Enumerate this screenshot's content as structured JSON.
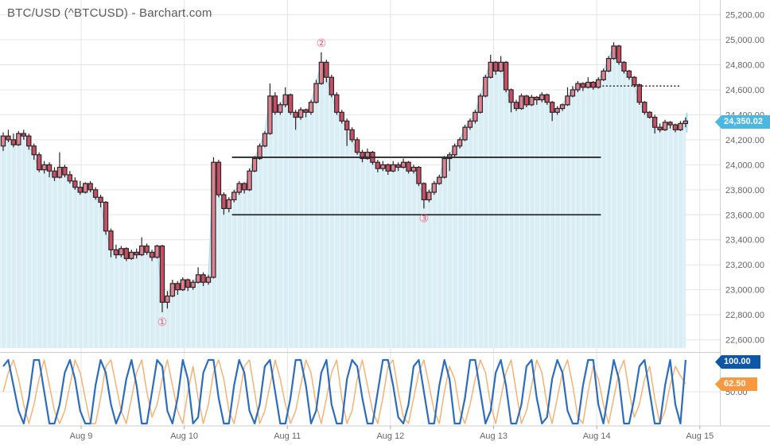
{
  "title": "BTC/USD (^BTCUSD) - Barchart.com",
  "badges": {
    "price": "24,350.02",
    "stoch_k": "100.00",
    "stoch_d": "62.50"
  },
  "y_axis": {
    "labels": [
      "25,200.00",
      "25,000.00",
      "24,800.00",
      "24,600.00",
      "24,400.00",
      "24,200.00",
      "24,000.00",
      "23,800.00",
      "23,600.00",
      "23,400.00",
      "23,200.00",
      "23,000.00",
      "22,800.00",
      "22,600.00"
    ]
  },
  "x_axis": {
    "labels": [
      "Aug 9",
      "Aug 10",
      "Aug 11",
      "Aug 12",
      "Aug 13",
      "Aug 14",
      "Aug 15"
    ]
  },
  "osc_axis": {
    "mid_label": "50.00"
  },
  "colors": {
    "candle_up": "#db8391",
    "candle_down": "#c84f63",
    "candle_border": "#2b2527",
    "area_fill": "#d9edf5",
    "area_stripe": "#e8f4f9",
    "area_edge": "#aedbea",
    "grid": "#e4e4e4",
    "axis_border": "#cccccc",
    "label": "#666666",
    "title": "#5a5c5e",
    "level_line": "#2a2a2a",
    "annotation": "#ef5e77",
    "stoch_k": "#2a6cc0",
    "stoch_d": "#f9ad69",
    "badge_price_bg": "#4bb7e3",
    "badge_k_bg": "#0e57a8",
    "badge_d_bg": "#f8993f",
    "live_bar": "#9fd9ee"
  },
  "chart_data": [
    {
      "type": "candlestick",
      "symbol": "BTC/USD (^BTCUSD)",
      "y_range": [
        22600,
        25200
      ],
      "y_step": 200,
      "x_range": [
        "Aug 9",
        "Aug 15"
      ],
      "last_price": 24350.02,
      "ohlc": [
        [
          24150,
          24260,
          24110,
          24230
        ],
        [
          24230,
          24280,
          24180,
          24200
        ],
        [
          24200,
          24250,
          24140,
          24160
        ],
        [
          24160,
          24270,
          24150,
          24250
        ],
        [
          24250,
          24280,
          24200,
          24230
        ],
        [
          24230,
          24250,
          24120,
          24150
        ],
        [
          24150,
          24170,
          24040,
          24080
        ],
        [
          24080,
          24100,
          23940,
          23960
        ],
        [
          23960,
          24030,
          23930,
          24000
        ],
        [
          24000,
          24020,
          23900,
          23950
        ],
        [
          23950,
          23980,
          23870,
          23900
        ],
        [
          23900,
          24100,
          23890,
          23980
        ],
        [
          23980,
          24000,
          23900,
          23920
        ],
        [
          23920,
          23950,
          23850,
          23870
        ],
        [
          23870,
          23900,
          23800,
          23820
        ],
        [
          23820,
          23870,
          23760,
          23780
        ],
        [
          23780,
          23860,
          23770,
          23850
        ],
        [
          23850,
          23870,
          23780,
          23800
        ],
        [
          23800,
          23820,
          23720,
          23740
        ],
        [
          23740,
          23760,
          23660,
          23700
        ],
        [
          23700,
          23710,
          23440,
          23470
        ],
        [
          23470,
          23490,
          23260,
          23320
        ],
        [
          23320,
          23360,
          23250,
          23280
        ],
        [
          23280,
          23350,
          23260,
          23330
        ],
        [
          23330,
          23340,
          23230,
          23250
        ],
        [
          23250,
          23320,
          23240,
          23300
        ],
        [
          23300,
          23330,
          23250,
          23280
        ],
        [
          23280,
          23420,
          23270,
          23350
        ],
        [
          23350,
          23370,
          23280,
          23300
        ],
        [
          23300,
          23320,
          23230,
          23260
        ],
        [
          23260,
          23360,
          23250,
          23350
        ],
        [
          23350,
          23360,
          22820,
          22900
        ],
        [
          22900,
          22990,
          22850,
          22950
        ],
        [
          22950,
          23080,
          22940,
          23050
        ],
        [
          23050,
          23070,
          22960,
          23000
        ],
        [
          23000,
          23100,
          22990,
          23080
        ],
        [
          23080,
          23090,
          22990,
          23020
        ],
        [
          23020,
          23080,
          23000,
          23060
        ],
        [
          23060,
          23180,
          23050,
          23120
        ],
        [
          23120,
          23140,
          23030,
          23060
        ],
        [
          23060,
          23120,
          23040,
          23100
        ],
        [
          23100,
          24060,
          23090,
          24020
        ],
        [
          24020,
          24040,
          23740,
          23760
        ],
        [
          23760,
          23780,
          23600,
          23650
        ],
        [
          23650,
          23740,
          23620,
          23720
        ],
        [
          23720,
          23800,
          23700,
          23780
        ],
        [
          23780,
          23870,
          23760,
          23850
        ],
        [
          23850,
          23860,
          23770,
          23800
        ],
        [
          23800,
          23970,
          23790,
          23950
        ],
        [
          23950,
          24070,
          23940,
          24050
        ],
        [
          24050,
          24170,
          24040,
          24150
        ],
        [
          24150,
          24270,
          24140,
          24250
        ],
        [
          24250,
          24650,
          24240,
          24550
        ],
        [
          24550,
          24580,
          24400,
          24420
        ],
        [
          24420,
          24500,
          24400,
          24480
        ],
        [
          24480,
          24620,
          24460,
          24560
        ],
        [
          24560,
          24570,
          24400,
          24420
        ],
        [
          24420,
          24440,
          24280,
          24380
        ],
        [
          24380,
          24460,
          24360,
          24440
        ],
        [
          24440,
          24450,
          24380,
          24420
        ],
        [
          24420,
          24520,
          24400,
          24500
        ],
        [
          24500,
          24680,
          24490,
          24650
        ],
        [
          24650,
          24900,
          24640,
          24820
        ],
        [
          24820,
          24840,
          24660,
          24700
        ],
        [
          24700,
          24720,
          24540,
          24560
        ],
        [
          24560,
          24580,
          24400,
          24420
        ],
        [
          24420,
          24440,
          24330,
          24350
        ],
        [
          24350,
          24370,
          24150,
          24280
        ],
        [
          24280,
          24300,
          24180,
          24200
        ],
        [
          24200,
          24220,
          24080,
          24100
        ],
        [
          24100,
          24120,
          24020,
          24050
        ],
        [
          24050,
          24130,
          24040,
          24100
        ],
        [
          24100,
          24110,
          24000,
          24020
        ],
        [
          24020,
          24040,
          23940,
          23970
        ],
        [
          23970,
          24030,
          23950,
          24000
        ],
        [
          24000,
          24010,
          23920,
          23950
        ],
        [
          23950,
          24030,
          23940,
          24000
        ],
        [
          24000,
          24020,
          23950,
          23980
        ],
        [
          23980,
          24050,
          23970,
          24020
        ],
        [
          24020,
          24030,
          23930,
          23950
        ],
        [
          23950,
          24000,
          23930,
          23980
        ],
        [
          23980,
          23990,
          23830,
          23850
        ],
        [
          23850,
          23860,
          23650,
          23720
        ],
        [
          23720,
          23800,
          23700,
          23780
        ],
        [
          23780,
          23870,
          23760,
          23850
        ],
        [
          23850,
          23920,
          23840,
          23900
        ],
        [
          23900,
          24070,
          23890,
          24050
        ],
        [
          24050,
          24100,
          23950,
          24080
        ],
        [
          24080,
          24170,
          24060,
          24150
        ],
        [
          24150,
          24220,
          24130,
          24200
        ],
        [
          24200,
          24320,
          24190,
          24300
        ],
        [
          24300,
          24370,
          24280,
          24350
        ],
        [
          24350,
          24440,
          24330,
          24420
        ],
        [
          24420,
          24570,
          24410,
          24550
        ],
        [
          24550,
          24720,
          24540,
          24700
        ],
        [
          24700,
          24880,
          24690,
          24820
        ],
        [
          24820,
          24830,
          24720,
          24750
        ],
        [
          24750,
          24870,
          24740,
          24820
        ],
        [
          24820,
          24830,
          24580,
          24600
        ],
        [
          24600,
          24610,
          24420,
          24500
        ],
        [
          24500,
          24520,
          24430,
          24450
        ],
        [
          24450,
          24570,
          24440,
          24550
        ],
        [
          24550,
          24560,
          24460,
          24480
        ],
        [
          24480,
          24560,
          24470,
          24540
        ],
        [
          24540,
          24550,
          24480,
          24520
        ],
        [
          24520,
          24580,
          24500,
          24560
        ],
        [
          24560,
          24570,
          24480,
          24500
        ],
        [
          24500,
          24510,
          24350,
          24420
        ],
        [
          24420,
          24470,
          24400,
          24450
        ],
        [
          24450,
          24490,
          24430,
          24480
        ],
        [
          24480,
          24620,
          24470,
          24550
        ],
        [
          24550,
          24630,
          24540,
          24600
        ],
        [
          24600,
          24670,
          24580,
          24650
        ],
        [
          24650,
          24660,
          24590,
          24620
        ],
        [
          24620,
          24700,
          24610,
          24660
        ],
        [
          24660,
          24670,
          24600,
          24620
        ],
        [
          24620,
          24700,
          24610,
          24680
        ],
        [
          24680,
          24770,
          24670,
          24750
        ],
        [
          24750,
          24870,
          24740,
          24850
        ],
        [
          24850,
          24980,
          24840,
          24950
        ],
        [
          24950,
          24960,
          24800,
          24820
        ],
        [
          24820,
          24830,
          24730,
          24750
        ],
        [
          24750,
          24760,
          24680,
          24700
        ],
        [
          24700,
          24710,
          24620,
          24640
        ],
        [
          24640,
          24650,
          24480,
          24500
        ],
        [
          24500,
          24510,
          24400,
          24420
        ],
        [
          24420,
          24430,
          24370,
          24380
        ],
        [
          24380,
          24400,
          24250,
          24300
        ],
        [
          24300,
          24330,
          24260,
          24280
        ],
        [
          24280,
          24360,
          24270,
          24340
        ],
        [
          24340,
          24350,
          24290,
          24320
        ],
        [
          24320,
          24330,
          24260,
          24280
        ],
        [
          24280,
          24350,
          24270,
          24330
        ],
        [
          24330,
          24380,
          24300,
          24350
        ]
      ],
      "levels": [
        {
          "style": "solid",
          "price": 24060,
          "start_index": 44.6,
          "end_index": 116.5
        },
        {
          "style": "solid",
          "price": 23600,
          "start_index": 44.6,
          "end_index": 116.5
        },
        {
          "style": "dotted",
          "price": 24630,
          "start_index": 116.8,
          "end_index": 131.8
        }
      ],
      "annotations": [
        {
          "label": "①",
          "candle_index": 31,
          "position": "below"
        },
        {
          "label": "②",
          "candle_index": 62,
          "position": "above"
        },
        {
          "label": "③",
          "candle_index": 82,
          "position": "below"
        }
      ]
    },
    {
      "type": "line",
      "name": "Stochastic",
      "y_range": [
        0,
        100
      ],
      "mid_gridline": 50,
      "series": [
        {
          "name": "%K",
          "last_value": 100.0,
          "values": [
            90,
            100,
            60,
            20,
            0,
            40,
            100,
            100,
            50,
            0,
            0,
            30,
            80,
            100,
            70,
            20,
            0,
            0,
            60,
            100,
            80,
            30,
            0,
            20,
            70,
            100,
            60,
            0,
            0,
            50,
            100,
            90,
            20,
            0,
            40,
            100,
            70,
            0,
            10,
            80,
            100,
            100,
            40,
            0,
            0,
            60,
            100,
            80,
            20,
            0,
            30,
            90,
            100,
            50,
            0,
            0,
            40,
            100,
            100,
            60,
            0,
            20,
            80,
            100,
            30,
            0,
            0,
            70,
            100,
            90,
            40,
            0,
            0,
            50,
            100,
            100,
            60,
            10,
            0,
            30,
            90,
            100,
            50,
            0,
            0,
            60,
            100,
            70,
            0,
            0,
            40,
            100,
            100,
            50,
            0,
            20,
            80,
            100,
            60,
            0,
            0,
            30,
            90,
            100,
            40,
            0,
            10,
            70,
            100,
            80,
            20,
            0,
            0,
            60,
            100,
            100,
            30,
            0,
            50,
            100,
            70,
            0,
            0,
            40,
            90,
            100,
            50,
            0,
            0,
            60,
            100,
            30,
            0,
            100
          ]
        },
        {
          "name": "%D",
          "last_value": 62.5,
          "values": [
            50,
            80,
            100,
            70,
            30,
            0,
            30,
            70,
            100,
            60,
            20,
            0,
            20,
            60,
            100,
            80,
            40,
            0,
            0,
            40,
            90,
            100,
            60,
            20,
            0,
            40,
            80,
            100,
            50,
            10,
            30,
            70,
            100,
            60,
            20,
            0,
            50,
            90,
            40,
            0,
            30,
            80,
            100,
            70,
            20,
            0,
            40,
            90,
            100,
            50,
            0,
            20,
            60,
            100,
            70,
            30,
            0,
            20,
            60,
            100,
            80,
            30,
            0,
            40,
            80,
            100,
            40,
            0,
            20,
            70,
            100,
            60,
            20,
            0,
            40,
            90,
            100,
            50,
            10,
            0,
            40,
            80,
            100,
            60,
            20,
            0,
            50,
            90,
            70,
            20,
            0,
            30,
            70,
            100,
            80,
            30,
            0,
            40,
            80,
            100,
            50,
            0,
            20,
            60,
            100,
            80,
            30,
            0,
            40,
            80,
            100,
            60,
            10,
            0,
            50,
            90,
            70,
            30,
            0,
            40,
            80,
            100,
            50,
            10,
            30,
            70,
            90,
            40,
            0,
            20,
            60,
            90,
            75,
            62.5
          ]
        }
      ]
    }
  ]
}
